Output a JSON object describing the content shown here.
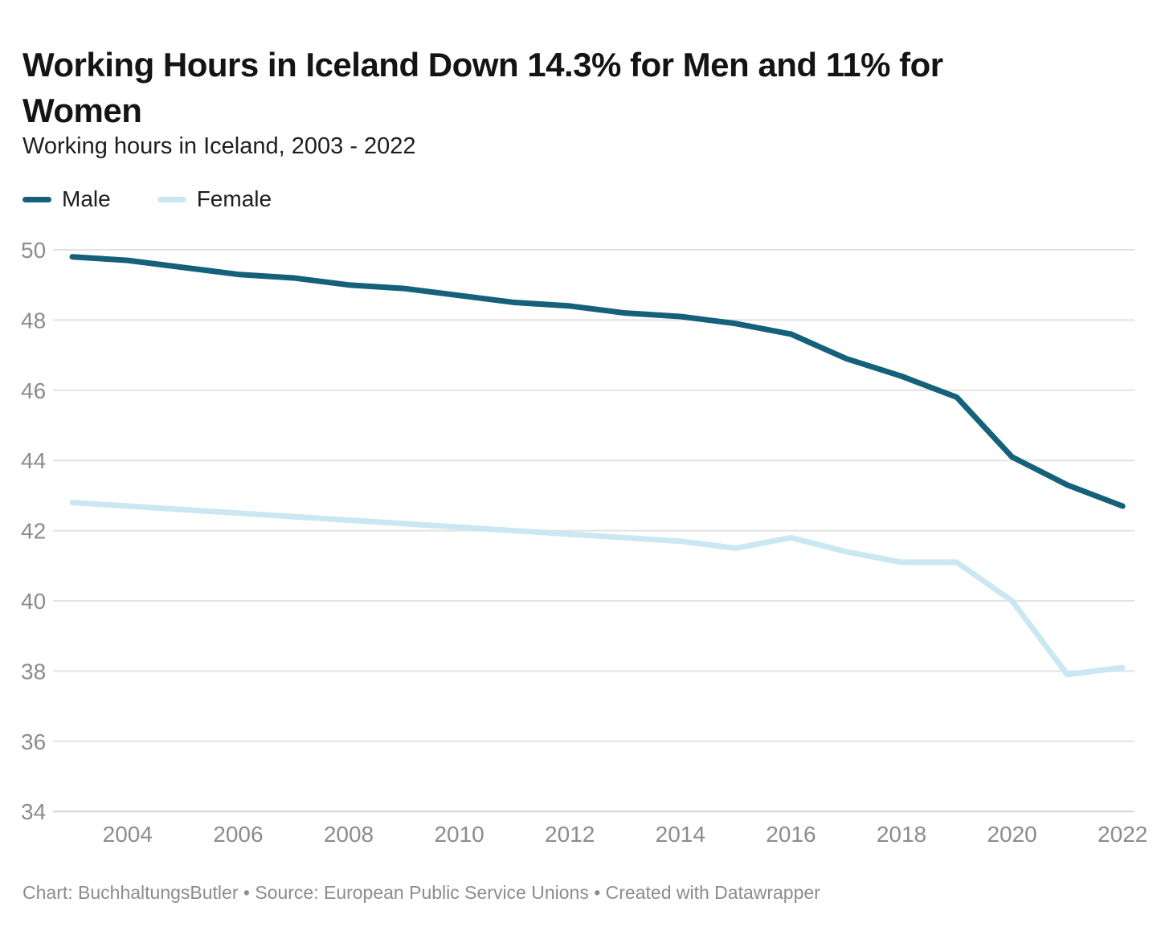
{
  "header": {
    "title": "Working Hours in Iceland Down 14.3% for Men and 11% for Women",
    "subtitle": "Working hours in Iceland, 2003 - 2022"
  },
  "legend": [
    {
      "label": "Male",
      "color": "#15607a"
    },
    {
      "label": "Female",
      "color": "#c9e8f2"
    }
  ],
  "chart_data": {
    "type": "line",
    "title": "Working Hours in Iceland Down 14.3% for Men and 11% for Women",
    "subtitle": "Working hours in Iceland, 2003 - 2022",
    "x": [
      2003,
      2004,
      2005,
      2006,
      2007,
      2008,
      2009,
      2010,
      2011,
      2012,
      2013,
      2014,
      2015,
      2016,
      2017,
      2018,
      2019,
      2020,
      2021,
      2022
    ],
    "series": [
      {
        "name": "Male",
        "color": "#15607a",
        "values": [
          49.8,
          49.7,
          49.5,
          49.3,
          49.2,
          49.0,
          48.9,
          48.7,
          48.5,
          48.4,
          48.2,
          48.1,
          47.9,
          47.6,
          46.9,
          46.4,
          45.8,
          44.1,
          43.3,
          42.7
        ]
      },
      {
        "name": "Female",
        "color": "#c9e8f2",
        "values": [
          42.8,
          42.7,
          42.6,
          42.5,
          42.4,
          42.3,
          42.2,
          42.1,
          42.0,
          41.9,
          41.8,
          41.7,
          41.5,
          41.8,
          41.4,
          41.1,
          41.1,
          40.0,
          37.9,
          38.1
        ]
      }
    ],
    "xlabel": "",
    "ylabel": "",
    "ylim": [
      34,
      50
    ],
    "yticks": [
      50,
      48,
      46,
      44,
      42,
      40,
      38,
      36,
      34
    ],
    "xticks": [
      2004,
      2006,
      2008,
      2010,
      2012,
      2014,
      2016,
      2018,
      2020,
      2022
    ],
    "grid": "horizontal",
    "legend_position": "top-left"
  },
  "footer": {
    "text": "Chart: BuchhaltungsButler • Source: European Public Service Unions • Created with Datawrapper"
  },
  "colors": {
    "male_line": "#15607a",
    "female_line": "#c9e8f2",
    "gridline": "#e2e2e2",
    "axis_text": "#8c8c8c",
    "title_text": "#141414",
    "footer_text": "#8c8c8c"
  }
}
